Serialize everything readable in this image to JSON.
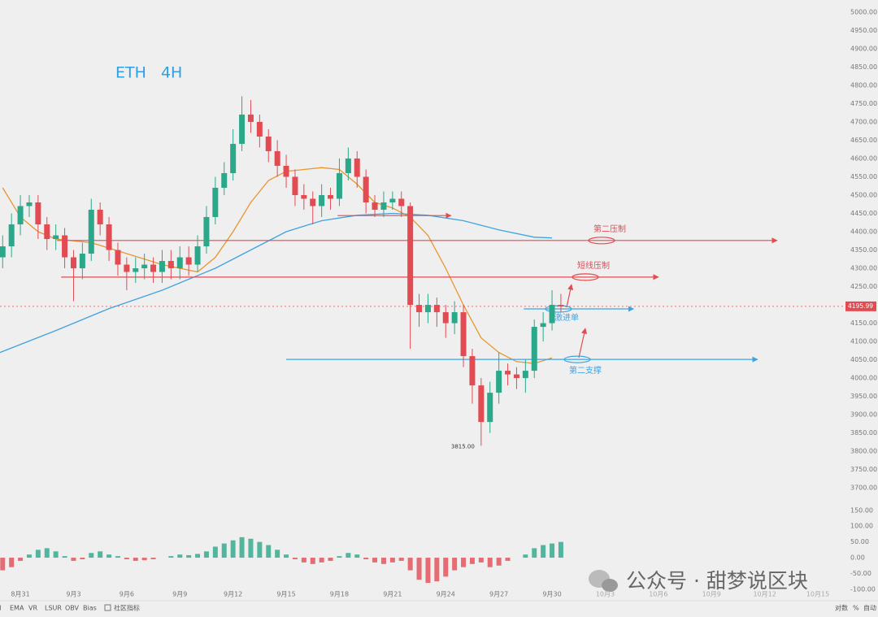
{
  "chart_data": {
    "type": "candlestick",
    "title": "ETH 4H",
    "up_color": "#2aa889",
    "down_color": "#e24b52",
    "xlim": [
      -1.15,
      46.1
    ],
    "xticks": [
      {
        "value": 0,
        "label": "8月31"
      },
      {
        "value": 3,
        "label": "9月3"
      },
      {
        "value": 6,
        "label": "9月6"
      },
      {
        "value": 9,
        "label": "9月9"
      },
      {
        "value": 12,
        "label": "9月12"
      },
      {
        "value": 15,
        "label": "9月15"
      },
      {
        "value": 18,
        "label": "9月18"
      },
      {
        "value": 21,
        "label": "9月21"
      },
      {
        "value": 24,
        "label": "9月24"
      },
      {
        "value": 27,
        "label": "9月27"
      },
      {
        "value": 30,
        "label": "9月30"
      },
      {
        "value": 33,
        "label": "10月3"
      },
      {
        "value": 36,
        "label": "10月6"
      },
      {
        "value": 39,
        "label": "10月9"
      },
      {
        "value": 42,
        "label": "10月12"
      },
      {
        "value": 45,
        "label": "10月15"
      }
    ],
    "ylim": [
      3667,
      5022
    ],
    "yticks": [
      {
        "value": 3700,
        "label": "3700.00"
      },
      {
        "value": 3750,
        "label": "3750.00"
      },
      {
        "value": 3800,
        "label": "3800.00"
      },
      {
        "value": 3850,
        "label": "3850.00"
      },
      {
        "value": 3900,
        "label": "3900.00"
      },
      {
        "value": 3950,
        "label": "3950.00"
      },
      {
        "value": 4000,
        "label": "4000.00"
      },
      {
        "value": 4050,
        "label": "4050.00"
      },
      {
        "value": 4100,
        "label": "4100.00"
      },
      {
        "value": 4150,
        "label": "4150.00"
      },
      {
        "value": 4250,
        "label": "4250.00"
      },
      {
        "value": 4300,
        "label": "4300.00"
      },
      {
        "value": 4350,
        "label": "4350.00"
      },
      {
        "value": 4400,
        "label": "4400.00"
      },
      {
        "value": 4450,
        "label": "4450.00"
      },
      {
        "value": 4500,
        "label": "4500.00"
      },
      {
        "value": 4550,
        "label": "4550.00"
      },
      {
        "value": 4600,
        "label": "4600.00"
      },
      {
        "value": 4650,
        "label": "4650.00"
      },
      {
        "value": 4700,
        "label": "4700.00"
      },
      {
        "value": 4750,
        "label": "4750.00"
      },
      {
        "value": 4800,
        "label": "4800.00"
      },
      {
        "value": 4850,
        "label": "4850.00"
      },
      {
        "value": 4900,
        "label": "4900.00"
      },
      {
        "value": 4950,
        "label": "4950.00"
      },
      {
        "value": 5000,
        "label": "5000.00"
      }
    ],
    "x": [
      -1,
      -0.5,
      0,
      0.5,
      1,
      1.5,
      2,
      2.5,
      3,
      3.5,
      4,
      4.5,
      5,
      5.5,
      6,
      6.5,
      7,
      7.5,
      8,
      8.5,
      9,
      9.5,
      10,
      10.5,
      11,
      11.5,
      12,
      12.5,
      13,
      13.5,
      14,
      14.5,
      15,
      15.5,
      16,
      16.5,
      17,
      17.5,
      18,
      18.5,
      19,
      19.5,
      20,
      20.5,
      21,
      21.5,
      22,
      22.5,
      23,
      23.5,
      24,
      24.5,
      25,
      25.5,
      26,
      26.5,
      27,
      27.5,
      28,
      28.5,
      29,
      29.5,
      30,
      30.5
    ],
    "open": [
      4330,
      4360,
      4420,
      4470,
      4480,
      4420,
      4380,
      4390,
      4330,
      4300,
      4340,
      4460,
      4420,
      4350,
      4310,
      4290,
      4300,
      4310,
      4290,
      4320,
      4300,
      4330,
      4310,
      4360,
      4440,
      4520,
      4560,
      4640,
      4720,
      4700,
      4660,
      4620,
      4580,
      4550,
      4500,
      4490,
      4470,
      4500,
      4490,
      4560,
      4600,
      4550,
      4480,
      4460,
      4480,
      4490,
      4470,
      4200,
      4180,
      4200,
      4180,
      4150,
      4180,
      4060,
      3980,
      3880,
      3960,
      4020,
      4010,
      4000,
      4020,
      4140,
      4150,
      4200
    ],
    "high": [
      4390,
      4450,
      4500,
      4500,
      4500,
      4440,
      4420,
      4410,
      4350,
      4370,
      4490,
      4480,
      4440,
      4370,
      4330,
      4330,
      4340,
      4330,
      4350,
      4350,
      4360,
      4360,
      4390,
      4470,
      4550,
      4590,
      4680,
      4770,
      4760,
      4720,
      4680,
      4650,
      4610,
      4570,
      4530,
      4510,
      4530,
      4520,
      4600,
      4630,
      4620,
      4570,
      4500,
      4510,
      4510,
      4510,
      4480,
      4230,
      4230,
      4220,
      4200,
      4210,
      4200,
      4080,
      4000,
      3990,
      4070,
      4040,
      4030,
      4050,
      4160,
      4180,
      4240,
      4230
    ],
    "low": [
      4300,
      4330,
      4390,
      4440,
      4380,
      4350,
      4350,
      4300,
      4210,
      4270,
      4320,
      4390,
      4320,
      4280,
      4240,
      4260,
      4270,
      4260,
      4260,
      4270,
      4270,
      4280,
      4290,
      4340,
      4420,
      4500,
      4540,
      4620,
      4670,
      4630,
      4590,
      4550,
      4520,
      4470,
      4460,
      4420,
      4440,
      4460,
      4470,
      4540,
      4520,
      4450,
      4440,
      4440,
      4460,
      4440,
      4080,
      4140,
      4150,
      4140,
      4110,
      4120,
      4030,
      3930,
      3815,
      3850,
      3930,
      3980,
      3970,
      3960,
      4000,
      4100,
      4130,
      4180
    ],
    "close": [
      4360,
      4420,
      4470,
      4480,
      4420,
      4380,
      4390,
      4330,
      4300,
      4340,
      4460,
      4420,
      4350,
      4310,
      4290,
      4300,
      4310,
      4290,
      4320,
      4300,
      4330,
      4310,
      4360,
      4440,
      4520,
      4560,
      4640,
      4720,
      4700,
      4660,
      4620,
      4580,
      4550,
      4500,
      4490,
      4470,
      4500,
      4490,
      4560,
      4600,
      4550,
      4480,
      4460,
      4480,
      4490,
      4470,
      4200,
      4180,
      4200,
      4180,
      4150,
      4180,
      4060,
      3980,
      3880,
      3960,
      4020,
      4010,
      4000,
      4020,
      4140,
      4150,
      4200,
      4196
    ],
    "ma": [
      {
        "color": "#e8962e",
        "x": [
          -1,
          0,
          1,
          2,
          4,
          6,
          8,
          10,
          11,
          12,
          13,
          14,
          15,
          16,
          17,
          18,
          19,
          20,
          21,
          22,
          23,
          24,
          25,
          26,
          27,
          28,
          29,
          30
        ],
        "values": [
          4520,
          4440,
          4400,
          4380,
          4370,
          4340,
          4310,
          4290,
          4330,
          4400,
          4480,
          4540,
          4565,
          4570,
          4575,
          4570,
          4530,
          4480,
          4465,
          4440,
          4390,
          4300,
          4200,
          4110,
          4070,
          4045,
          4040,
          4055
        ]
      },
      {
        "color": "#3fa3e0",
        "x": [
          -1.15,
          2,
          5,
          8,
          11,
          13,
          15,
          17,
          19,
          21,
          23,
          25,
          27,
          29,
          30
        ],
        "values": [
          4070,
          4130,
          4190,
          4240,
          4300,
          4350,
          4400,
          4430,
          4445,
          4450,
          4445,
          4430,
          4405,
          4385,
          4383
        ]
      }
    ],
    "last_price": 4195.99,
    "low_marker": {
      "x": 26,
      "value": 3815,
      "label": "3815.00"
    },
    "annotations": [
      {
        "text": "第二压制",
        "color": "#e24b52",
        "level": 4376,
        "from": 2.06,
        "to": 42.7
      },
      {
        "text": "短线压制",
        "color": "#e24b52",
        "level": 4276,
        "from": 2.3,
        "to": 36
      },
      {
        "color": "#e24b52",
        "level": 4444,
        "from": 17.9,
        "to": 24.3
      },
      {
        "text": "激进单",
        "color": "#3fa3e0",
        "level": 4189,
        "from": 28.4,
        "to": 34.6
      },
      {
        "text": "第二支撑",
        "color": "#3fa3e0",
        "level": 4051,
        "from": 15,
        "to": 41.6
      }
    ],
    "indicator": {
      "type": "bar",
      "ylim": [
        -121,
        165
      ],
      "yticks": [
        {
          "value": 150,
          "label": "150.00"
        },
        {
          "value": 100,
          "label": "100.00"
        },
        {
          "value": 50,
          "label": "50.00"
        },
        {
          "value": 0,
          "label": "0.00"
        },
        {
          "value": -50,
          "label": "-50.00"
        },
        {
          "value": -100,
          "label": "-100.00"
        }
      ],
      "values": [
        -40,
        -30,
        -10,
        10,
        25,
        30,
        20,
        5,
        -10,
        -5,
        15,
        20,
        10,
        5,
        -5,
        -10,
        -8,
        -5,
        0,
        5,
        10,
        8,
        12,
        20,
        35,
        45,
        55,
        65,
        60,
        50,
        40,
        25,
        10,
        -5,
        -15,
        -20,
        -15,
        -10,
        5,
        15,
        10,
        -5,
        -15,
        -20,
        -15,
        -10,
        -40,
        -70,
        -80,
        -75,
        -60,
        -40,
        -30,
        -20,
        -15,
        -30,
        -25,
        -10,
        0,
        10,
        30,
        40,
        45,
        50
      ]
    }
  },
  "toolbar": {
    "items": [
      "SI",
      "EMA",
      "VR",
      "LSUR",
      "OBV",
      "Bias",
      "社区指标"
    ],
    "right": [
      "对数",
      "%",
      "自动"
    ]
  },
  "watermark": "公众号 · 甜梦说区块"
}
